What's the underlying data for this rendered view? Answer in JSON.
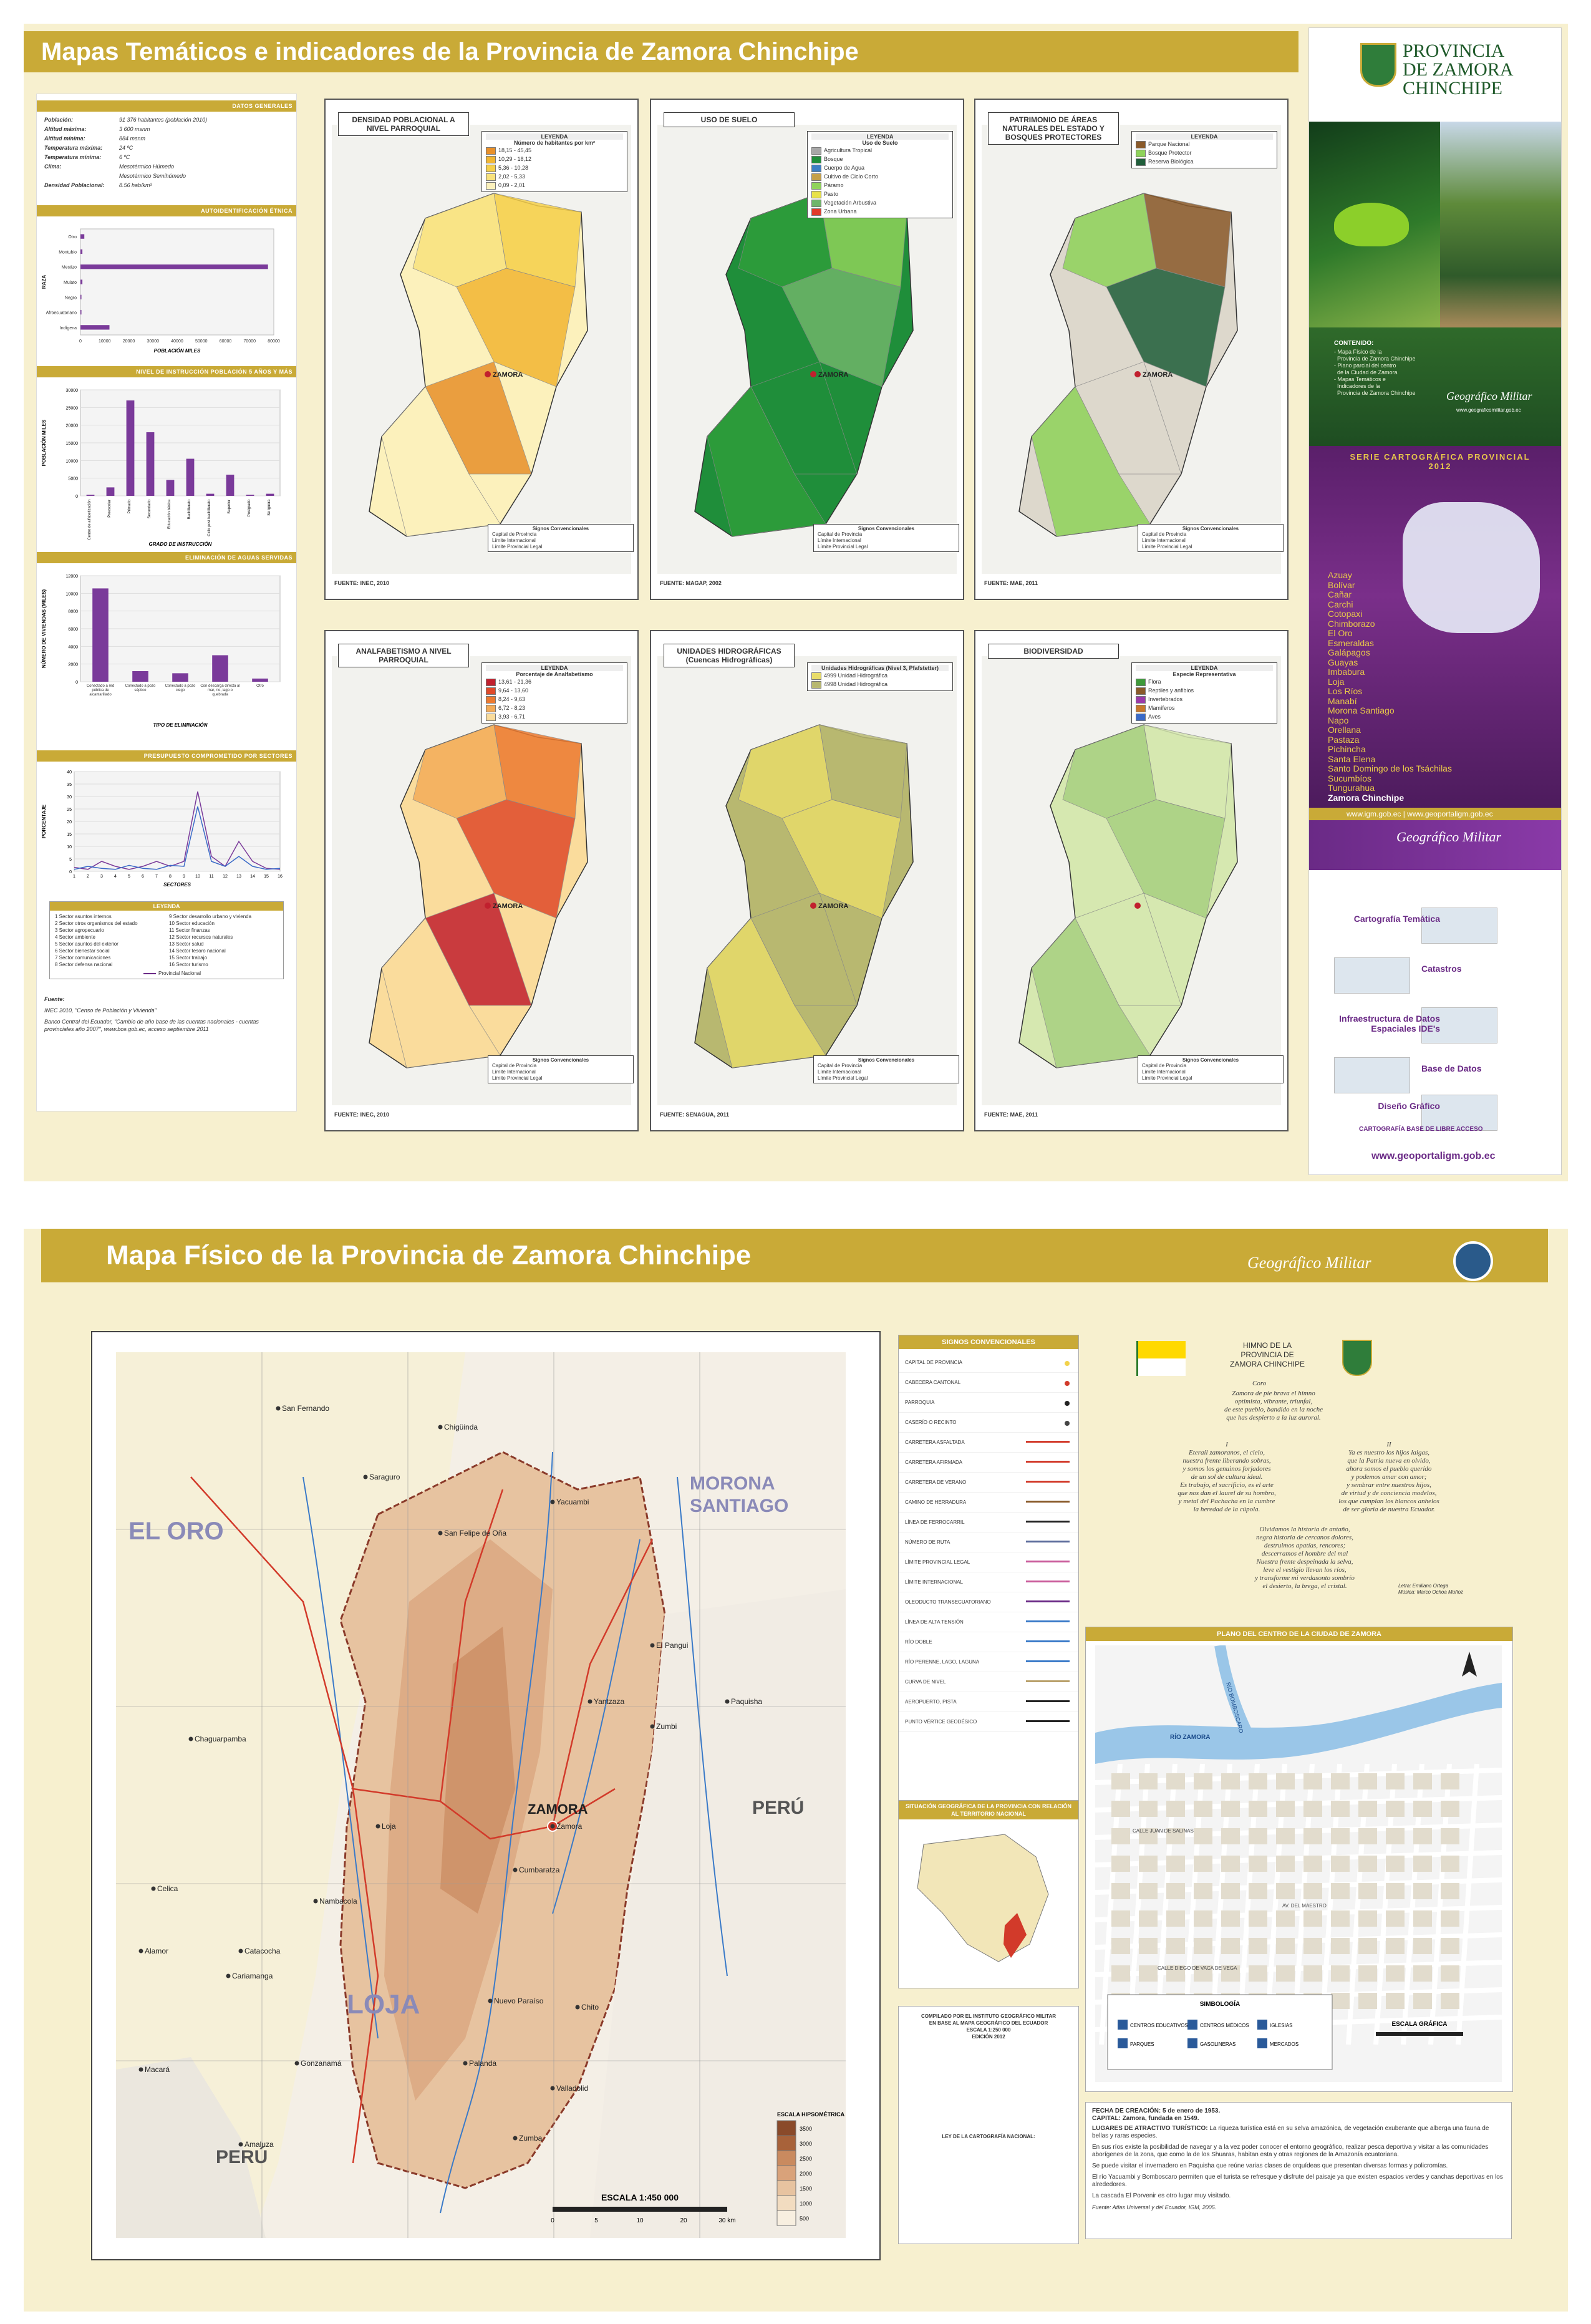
{
  "top": {
    "title": "Mapas Temáticos e indicadores de la Provincia de Zamora Chinchipe",
    "general": {
      "section_title": "DATOS GENERALES",
      "rows": [
        {
          "label": "Población:",
          "value": "91 376 habitantes (población 2010)"
        },
        {
          "label": "Altitud máxima:",
          "value": "3 600 msnm"
        },
        {
          "label": "Altitud mínima:",
          "value": "884 msnm"
        },
        {
          "label": "Temperatura máxima:",
          "value": "24 ºC"
        },
        {
          "label": "Temperatura mínima:",
          "value": "6 ºC"
        },
        {
          "label": "Clima:",
          "value": "Mesotérmico Húmedo"
        },
        {
          "label": "",
          "value": "Mesotérmico Semihúmedo"
        },
        {
          "label": "Densidad Poblacional:",
          "value": "8.56 hab/km²"
        }
      ]
    },
    "ethnic_chart": {
      "section_title": "AUTOIDENTIFICACIÓN ÉTNICA",
      "ylabel": "RAZA",
      "xlabel": "POBLACIÓN MILES",
      "categories": [
        "Otro",
        "Montubio",
        "Mestizo",
        "Mulato",
        "Negro",
        "Afroecuatoriano",
        "Indígena"
      ],
      "x_ticks": [
        "0",
        "10000",
        "20000",
        "30000",
        "40000",
        "50000",
        "60000",
        "70000",
        "80000"
      ]
    },
    "education_chart": {
      "section_title": "NIVEL DE INSTRUCCIÓN POBLACIÓN 5 AÑOS Y MÁS",
      "ylabel": "POBLACIÓN MILES",
      "xlabel": "GRADO DE INSTRUCCIÓN",
      "y_ticks": [
        "0",
        "5000",
        "10000",
        "15000",
        "20000",
        "25000",
        "30000"
      ],
      "categories": [
        "Centro de alfabetización",
        "Preescolar",
        "Primario",
        "Secundario",
        "Educación básica",
        "Bachillerato",
        "Ciclo post bachillerato",
        "Superior",
        "Postgrado",
        "Se ignora"
      ]
    },
    "waste_chart": {
      "section_title": "ELIMINACIÓN DE AGUAS SERVIDAS",
      "ylabel": "NÚMERO DE VIVIENDAS (MILES)",
      "xlabel": "TIPO DE ELIMINACIÓN",
      "y_ticks": [
        "0",
        "2000",
        "4000",
        "6000",
        "8000",
        "10000",
        "12000"
      ],
      "categories": [
        "Conectado a red pública de alcantarillado",
        "Conectado a pozo séptico",
        "Conectado a pozo ciego",
        "Con descarga directa al mar, río, lago o quebrada",
        "Otro"
      ]
    },
    "budget_chart": {
      "section_title": "PRESUPUESTO COMPROMETIDO POR SECTORES",
      "ylabel": "PORCENTAJE",
      "xlabel": "SECTORES",
      "y_ticks": [
        "0",
        "5",
        "10",
        "15",
        "20",
        "25",
        "30",
        "35",
        "40"
      ],
      "x_ticks": [
        "1",
        "2",
        "3",
        "4",
        "5",
        "6",
        "7",
        "8",
        "9",
        "10",
        "11",
        "12",
        "13",
        "14",
        "15",
        "16"
      ],
      "legend_title": "LEYENDA",
      "legend_items": [
        "1  Sector asuntos internos",
        "2  Sector otros organismos del estado",
        "3  Sector agropecuario",
        "4  Sector ambiente",
        "5  Sector asuntos del exterior",
        "6  Sector bienestar social",
        "7  Sector comunicaciones",
        "8  Sector defensa nacional",
        "9  Sector desarrollo urbano y vivienda",
        "10  Sector educación",
        "11  Sector finanzas",
        "12  Sector recursos naturales",
        "13  Sector salud",
        "14  Sector tesoro nacional",
        "15  Sector trabajo",
        "16  Sector turismo"
      ],
      "legend_line": "Provincial Nacional"
    },
    "sources": {
      "title": "Fuente:",
      "lines": [
        "INEC 2010, \"Censo de Población y Vivienda\"",
        "Banco Central del Ecuador, \"Cambio de año base de las cuentas nacionales - cuentas provinciales año 2007\", www.bce.gob.ec, acceso septiembre 2011"
      ]
    },
    "maps": [
      {
        "title": "DENSIDAD POBLACIONAL A NIVEL PARROQUIAL",
        "legend_title": "LEYENDA",
        "legend_sub": "Número de habitantes por km²",
        "legend": [
          {
            "c": "#e8902a",
            "t": "18,15 - 45,45"
          },
          {
            "c": "#f2b632",
            "t": "10,29 - 18,12"
          },
          {
            "c": "#f6d04a",
            "t": "5,36 - 10,28"
          },
          {
            "c": "#f9e27d",
            "t": "2,02 - 5,33"
          },
          {
            "c": "#fcf1bc",
            "t": "0,09 - 2,01"
          }
        ],
        "source": "FUENTE: INEC, 2010",
        "city": "ZAMORA",
        "signs_title": "Signos Convencionales",
        "signs": [
          "Capital de Provincia",
          "Límite Internacional",
          "Límite Provincial Legal"
        ]
      },
      {
        "title": "USO DE SUELO",
        "legend_title": "LEYENDA",
        "legend_sub": "Uso de Suelo",
        "legend": [
          {
            "c": "#a7a7a7",
            "t": "Agricultura Tropical"
          },
          {
            "c": "#1f8e3a",
            "t": "Bosque"
          },
          {
            "c": "#3d7fc4",
            "t": "Cuerpo de Agua"
          },
          {
            "c": "#c4a04a",
            "t": "Cultivo de Ciclo Corto"
          },
          {
            "c": "#8fd35a",
            "t": "Páramo"
          },
          {
            "c": "#e8e24a",
            "t": "Pasto"
          },
          {
            "c": "#6fb56a",
            "t": "Vegetación Arbustiva"
          },
          {
            "c": "#e03a2a",
            "t": "Zona Urbana"
          }
        ],
        "source": "FUENTE: MAGAP, 2002",
        "city": "ZAMORA",
        "signs_title": "Signos Convencionales",
        "signs": [
          "Capital de Provincia",
          "Límite Internacional",
          "Límite Provincial Legal"
        ]
      },
      {
        "title": "PATRIMONIO DE ÁREAS NATURALES DEL ESTADO Y BOSQUES PROTECTORES",
        "legend_title": "LEYENDA",
        "legend_sub": "",
        "legend": [
          {
            "c": "#8a5a2a",
            "t": "Parque Nacional"
          },
          {
            "c": "#8fd35a",
            "t": "Bosque Protector"
          },
          {
            "c": "#1f5e3a",
            "t": "Reserva Biológica"
          }
        ],
        "source": "FUENTE: MAE, 2011",
        "city": "ZAMORA",
        "signs_title": "Signos Convencionales",
        "signs": [
          "Capital de Provincia",
          "Límite Internacional",
          "Límite Provincial Legal"
        ]
      },
      {
        "title": "ANALFABETISMO A NIVEL PARROQUIAL",
        "legend_title": "LEYENDA",
        "legend_sub": "Porcentaje de Analfabetismo",
        "legend": [
          {
            "c": "#c1202e",
            "t": "13,61 - 21,36"
          },
          {
            "c": "#e04a2a",
            "t": "9,64 - 13,60"
          },
          {
            "c": "#ec7a30",
            "t": "8,24 - 9,63"
          },
          {
            "c": "#f4ac58",
            "t": "6,72 - 8,23"
          },
          {
            "c": "#fadc9c",
            "t": "3,93 - 6,71"
          }
        ],
        "source": "FUENTE: INEC, 2010",
        "city": "ZAMORA",
        "signs_title": "Signos Convencionales",
        "signs": [
          "Capital de Provincia",
          "Límite Internacional",
          "Límite Provincial Legal"
        ]
      },
      {
        "title": "UNIDADES HIDROGRÁFICAS (Cuencas Hidrográficas)",
        "legend_title": "Unidades Hidrográficas (Nivel 3, Pfafstetter)",
        "legend_sub": "",
        "legend": [
          {
            "c": "#e8dc6a",
            "t": "4999 Unidad Hidrográfica"
          },
          {
            "c": "#b8b870",
            "t": "4998 Unidad Hidrográfica"
          }
        ],
        "source": "FUENTE: SENAGUA, 2011",
        "city": "ZAMORA",
        "signs_title": "Signos Convencionales",
        "signs": [
          "Capital de Provincia",
          "Límite Internacional",
          "Límite Provincial Legal"
        ]
      },
      {
        "title": "BIODIVERSIDAD",
        "legend_title": "LEYENDA",
        "legend_sub": "Especie Representativa",
        "legend": [
          {
            "c": "#3e9a3a",
            "t": "Flora"
          },
          {
            "c": "#8a5a2a",
            "t": "Reptiles y anfibios"
          },
          {
            "c": "#9a3aa8",
            "t": "Invertebrados"
          },
          {
            "c": "#c8782a",
            "t": "Mamíferos"
          },
          {
            "c": "#3a6ac8",
            "t": "Aves"
          }
        ],
        "source": "FUENTE: MAE, 2011",
        "city": "",
        "signs_title": "Signos Convencionales",
        "signs": [
          "Capital de Provincia",
          "Límite Internacional",
          "Límite Provincial Legal"
        ]
      }
    ],
    "cover": {
      "brand": "PROVINCIA DE ZAMORA CHINCHIPE",
      "contents_title": "CONTENIDO:",
      "contents": [
        "- Mapa Físico de la",
        "  Provincia de Zamora Chinchipe",
        "- Plano parcial del centro",
        "  de la Ciudad de Zamora",
        "- Mapas Temáticos e",
        "  Indicadores de la",
        "  Provincia de Zamora Chinchipe"
      ],
      "igm_title": "Geográfico Militar",
      "igm_url": "www.geograficomilitar.gob.ec",
      "series_title": "SERIE CARTOGRÁFICA PROVINCIAL 2012",
      "provinces": [
        "Azuay",
        "Bolívar",
        "Cañar",
        "Carchi",
        "Cotopaxi",
        "Chimborazo",
        "El Oro",
        "Esmeraldas",
        "Galápagos",
        "Guayas",
        "Imbabura",
        "Loja",
        "Los Ríos",
        "Manabí",
        "Morona Santiago",
        "Napo",
        "Orellana",
        "Pastaza",
        "Pichincha",
        "Santa Elena",
        "Santo Domingo de los Tsáchilas",
        "Sucumbíos",
        "Tungurahua",
        "Zamora Chinchipe"
      ],
      "web_bar": "www.igm.gob.ec | www.geoportaligm.gob.ec",
      "products": [
        "Cartografía Temática",
        "Catastros",
        "Infraestructura de Datos Espaciales IDE's",
        "Base de Datos",
        "Diseño Gráfico"
      ],
      "free_title": "CARTOGRAFÍA BASE DE LIBRE ACCESO",
      "portal": "www.geoportaligm.gob.ec"
    }
  },
  "bottom": {
    "title": "Mapa Físico de la Provincia de Zamora Chinchipe",
    "igm_logo_text": "Geográfico Militar",
    "map_labels": {
      "el_oro": "EL ORO",
      "morona": "MORONA SANTIAGO",
      "loja": "LOJA",
      "peru_right": "PERÚ",
      "peru_left": "PERÚ",
      "zamora": "ZAMORA"
    },
    "places": [
      "San Fernando",
      "Chigüinda",
      "San Felipe de Oña",
      "Yacuambi",
      "El Pangui",
      "Yantzaza",
      "Zumbi",
      "Paquisha",
      "Loja",
      "Zamora",
      "Cumbaratza",
      "Palanda",
      "Zumba",
      "Nambacola",
      "Gonzanamá",
      "Amaluza",
      "Macará",
      "Catacocha",
      "Cariamanga",
      "Saraguro",
      "Chaguarpamba",
      "Celica",
      "Alamor",
      "Valladolid",
      "Chito",
      "Nuevo Paraíso"
    ],
    "signs_title": "SIGNOS CONVENCIONALES",
    "signs": [
      "CAPITAL DE PROVINCIA",
      "CABECERA CANTONAL",
      "PARROQUIA",
      "CASERÍO O RECINTO",
      "CARRETERA ASFALTADA",
      "CARRETERA AFIRMADA",
      "CARRETERA DE VERANO",
      "CAMINO DE HERRADURA",
      "LÍNEA DE FERROCARRIL",
      "NÚMERO DE RUTA",
      "LÍMITE PROVINCIAL LEGAL",
      "LÍMITE INTERNACIONAL",
      "OLEODUCTO TRANSECUATORIANO",
      "LÍNEA DE ALTA TENSIÓN",
      "RÍO DOBLE",
      "RÍO PERENNE, LAGO, LAGUNA",
      "CURVA DE NIVEL",
      "AEROPUERTO, PISTA",
      "PUNTO VÉRTICE GEODÉSICO"
    ],
    "situation_title": "SITUACIÓN GEOGRÁFICA DE LA PROVINCIA CON RELACIÓN AL TERRITORIO NACIONAL",
    "hymn": {
      "title": "HIMNO DE LA PROVINCIA DE ZAMORA CHINCHIPE",
      "coro_title": "Coro",
      "coro": [
        "Zamora de pie brava el himno",
        "optimista, vibrante, triunfal,",
        "de este pueblo, bandido en la noche",
        "que has despierto a la luz auroral."
      ],
      "stanza1": [
        "I",
        "Eterail zamoranos, el cielo,",
        "nuestra frente liberando sobras,",
        "y somos los genuinos forjadores",
        "de un sol de cultura ideal.",
        "Es trabajo, el sacrificio, es el arte",
        "que nos dan el laurel de su hombro,",
        "y metal del Pachacha en la cumbre",
        "la heredad de la cúpola."
      ],
      "stanza2": [
        "II",
        "Ya es nuestro los hijos laigas,",
        "que la Patria nueva en olvido,",
        "ahora somos el pueblo querido",
        "y podemos amar con amor;",
        "y sembrar entre nuestros hijos,",
        "de virtud y de conciencia modelos,",
        "los que cumplan los blancos anhelos",
        "de ser gloria de nuestra Ecuador."
      ],
      "stanza3": [
        "Olvidamos la historia de antaño,",
        "negra historia de cercanos dolores,",
        "destruimos apatías, rencores;",
        "descerramos el hombre del mal",
        "Nuestra frente despeinada la selva,",
        "leve el vestigio llevan los ríos,",
        "y transforme mi verdasonto sombrío",
        "el desierto, la brega, el cristal."
      ],
      "credit": [
        "Letra: Emiliano Ortega",
        "Música: Marco Ochoa Muñoz"
      ]
    },
    "plan_title": "PLANO DEL CENTRO DE LA CIUDAD DE ZAMORA",
    "plan_labels": [
      "RÍO ZAMORA",
      "RÍO BOMBOSCARO",
      "CALLE JUAN DE SALINAS",
      "AV. DEL MAESTRO",
      "CALLE DIEGO DE VACA DE VEGA"
    ],
    "symbology": {
      "title": "SIMBOLOGÍA",
      "items": [
        "CENTROS EDUCATIVOS",
        "CENTROS MÉDICOS",
        "IGLESIAS",
        "PARQUES",
        "GASOLINERAS",
        "MERCADOS"
      ]
    },
    "scale_graphic": "ESCALA GRÁFICA",
    "scale": "ESCALA 1:450 000",
    "scale_ticks": [
      "0",
      "5",
      "10",
      "20",
      "30 km"
    ],
    "elevation_title": "ESCALA HIPSOMÉTRICA",
    "elevation_ticks": [
      "3500",
      "3000",
      "2500",
      "2000",
      "1500",
      "1000",
      "500"
    ],
    "compiled": [
      "COMPILADO POR EL INSTITUTO GEOGRÁFICO MILITAR",
      "EN BASE AL MAPA GEOGRÁFICO DEL ECUADOR",
      "ESCALA 1:250 000",
      "EDICIÓN 2012"
    ],
    "law_title": "LEY DE LA CARTOGRAFÍA NACIONAL:",
    "facts": {
      "fecha": "FECHA DE CREACIÓN: 5 de enero de 1953.",
      "capital": "CAPITAL: Zamora, fundada en 1549.",
      "lugares_title": "LUGARES DE ATRACTIVO TURÍSTICO:",
      "lugares": "La riqueza turística está en su selva amazónica, de vegetación exuberante que alberga una fauna de bellas y raras especies.",
      "p1": "En sus ríos existe la posibilidad de navegar y a la vez poder conocer el entorno geográfico, realizar pesca deportiva y visitar a las comunidades aborígenes de la zona, que como la de los Shuaras, habitan esta y otras regiones de la Amazonía ecuatoriana.",
      "p2": "Se puede visitar el invernadero en Paquisha que reúne varias clases de orquídeas que presentan diversas formas y policromías.",
      "p3": "El río Yacuambi y Bomboscaro permiten que el turista se refresque y disfrute del paisaje ya que existen espacios verdes y canchas deportivas en los alrededores.",
      "p4": "La cascada El Porvenir es otro lugar muy visitado.",
      "fuente": "Fuente: Atlas Universal y del Ecuador, IGM, 2005."
    }
  },
  "colors": {
    "gold": "#c9aa37",
    "cream": "#f7f0cf",
    "purple": "#6a2a86",
    "green_dark": "#1f7a3a"
  }
}
